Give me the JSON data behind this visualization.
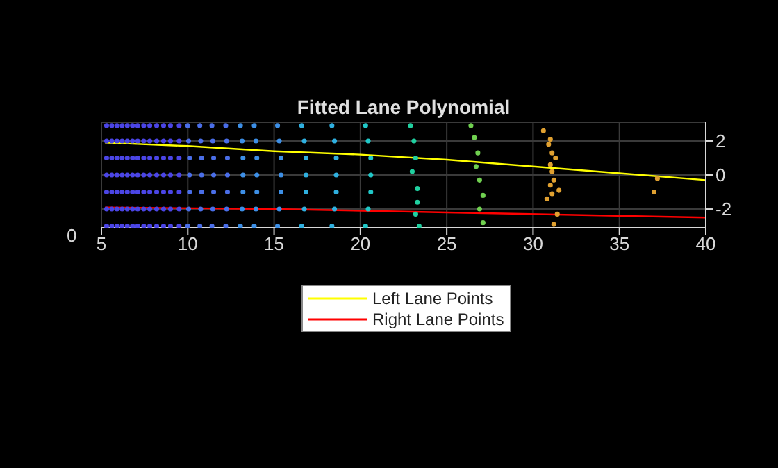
{
  "chart_data": {
    "type": "scatter",
    "title": "Fitted Lane Polynomial",
    "xlim": [
      5,
      40
    ],
    "xticks": [
      5,
      10,
      15,
      20,
      25,
      30,
      35,
      40
    ],
    "ylim": [
      -3.1,
      3.1
    ],
    "yticks": [
      -2,
      0,
      2
    ],
    "grid": true,
    "legend": "bottom",
    "marker": "circle",
    "annotations": [
      "0"
    ],
    "series": [
      {
        "type": "line",
        "name": "Left Lane Points",
        "color": "#ffff00",
        "marker": "none",
        "x": [
          5.2,
          10,
          15,
          20,
          25,
          30,
          35,
          40
        ],
        "values": [
          1.9,
          1.7,
          1.4,
          1.2,
          0.9,
          0.5,
          0.1,
          -0.3
        ]
      },
      {
        "type": "line",
        "name": "Right Lane Points",
        "color": "#ff0000",
        "marker": "none",
        "x": [
          5.2,
          15,
          25,
          40
        ],
        "values": [
          -1.9,
          -2.0,
          -2.2,
          -2.5
        ]
      },
      {
        "color": "#4b45e6",
        "x": [
          5.3,
          5.3,
          5.3,
          5.3,
          5.3,
          5.3,
          5.3,
          5.6,
          5.6,
          5.6,
          5.6,
          5.6,
          5.6,
          5.6,
          5.9,
          5.9,
          5.9,
          5.9,
          5.9,
          5.9,
          5.9,
          6.2,
          6.2,
          6.2,
          6.2,
          6.2,
          6.2,
          6.2,
          6.5,
          6.5,
          6.5,
          6.5,
          6.5,
          6.5,
          6.5,
          6.8,
          6.8,
          6.8,
          6.8,
          6.8,
          6.8,
          6.8,
          7.1,
          7.1,
          7.1,
          7.1,
          7.1,
          7.1,
          7.1,
          7.45,
          7.45,
          7.45,
          7.45,
          7.45,
          7.45,
          7.45,
          7.8,
          7.8,
          7.8,
          7.8,
          7.8,
          7.8,
          7.8,
          8.2,
          8.2,
          8.2,
          8.2,
          8.2,
          8.2,
          8.2,
          8.6,
          8.6,
          8.6,
          8.6,
          8.6,
          8.6,
          8.6,
          9.0,
          9.0,
          9.0,
          9.0,
          9.0,
          9.0,
          9.0,
          9.5,
          9.5,
          9.5,
          9.5,
          9.5,
          9.5,
          9.5
        ],
        "values": [
          2.9,
          2,
          1,
          0,
          -1,
          -2,
          -3,
          2.9,
          2,
          1,
          0,
          -1,
          -2,
          -3,
          2.9,
          2,
          1,
          0,
          -1,
          -2,
          -3,
          2.9,
          2,
          1,
          0,
          -1,
          -2,
          -3,
          2.9,
          2,
          1,
          0,
          -1,
          -2,
          -3,
          2.9,
          2,
          1,
          0,
          -1,
          -2,
          -3,
          2.9,
          2,
          1,
          0,
          -1,
          -2,
          -3,
          2.9,
          2,
          1,
          0,
          -1,
          -2,
          -3,
          2.9,
          2,
          1,
          0,
          -1,
          -2,
          -3,
          2.9,
          2,
          1,
          0,
          -1,
          -2,
          -3,
          2.9,
          2,
          1,
          0,
          -1,
          -2,
          -3,
          2.9,
          2,
          1,
          0,
          -1,
          -2,
          -3,
          2.9,
          2,
          1,
          0,
          -1,
          -2,
          -3
        ]
      },
      {
        "color": "#4a6ee8",
        "x": [
          10.0,
          10.05,
          10.1,
          10.1,
          10.1,
          10.05,
          10.0,
          10.7,
          10.75,
          10.8,
          10.8,
          10.8,
          10.75,
          10.7,
          11.4,
          11.45,
          11.5,
          11.5,
          11.5,
          11.45,
          11.4,
          12.2,
          12.25,
          12.3,
          12.3,
          12.3,
          12.25,
          12.2
        ],
        "values": [
          2.9,
          2,
          1,
          0,
          -1,
          -2,
          -3,
          2.9,
          2,
          1,
          0,
          -1,
          -2,
          -3,
          2.9,
          2,
          1,
          0,
          -1,
          -2,
          -3,
          2.9,
          2,
          1,
          0,
          -1,
          -2,
          -3
        ]
      },
      {
        "color": "#3d8fe6",
        "x": [
          13.05,
          13.15,
          13.2,
          13.2,
          13.2,
          13.15,
          13.05,
          13.85,
          13.95,
          14.0,
          14.0,
          14.0,
          13.95,
          13.85,
          15.2,
          15.3,
          15.4,
          15.4,
          15.4,
          15.3,
          15.2
        ],
        "values": [
          2.9,
          2,
          1,
          0,
          -1,
          -2,
          -3,
          2.9,
          2,
          1,
          0,
          -1,
          -2,
          -3,
          2.9,
          2,
          1,
          0,
          -1,
          -2,
          -3
        ]
      },
      {
        "color": "#2fb0e0",
        "x": [
          16.6,
          16.75,
          16.85,
          16.85,
          16.85,
          16.75,
          16.6,
          18.35,
          18.5,
          18.6,
          18.6,
          18.6,
          18.5,
          18.35
        ],
        "values": [
          2.9,
          2,
          1,
          0,
          -1,
          -2,
          -3,
          2.9,
          2,
          1,
          0,
          -1,
          -2,
          -3
        ]
      },
      {
        "color": "#20c8c8",
        "x": [
          20.3,
          20.45,
          20.6,
          20.6,
          20.6,
          20.45,
          20.3
        ],
        "values": [
          2.9,
          2,
          1,
          0,
          -1,
          -2,
          -3
        ]
      },
      {
        "color": "#20d0a0",
        "x": [
          22.9,
          23.1,
          23.2,
          23.0,
          23.3,
          23.3,
          23.2,
          23.4
        ],
        "values": [
          2.9,
          2,
          1,
          0.2,
          -0.8,
          -1.6,
          -2.3,
          -3
        ]
      },
      {
        "color": "#70d050",
        "x": [
          26.4,
          26.6,
          26.8,
          26.7,
          26.9,
          27.1,
          26.9,
          27.1
        ],
        "values": [
          2.9,
          2.2,
          1.3,
          0.5,
          -0.3,
          -1.2,
          -2.0,
          -2.8
        ]
      },
      {
        "color": "#e0a030",
        "x": [
          30.6,
          31.0,
          30.9,
          31.1,
          31.3,
          31.0,
          31.1,
          31.2,
          31.0,
          31.5,
          31.1,
          30.8,
          31.4,
          31.2,
          37.2,
          37.0
        ],
        "values": [
          2.6,
          2.1,
          1.8,
          1.3,
          1.0,
          0.6,
          0.2,
          -0.3,
          -0.6,
          -0.9,
          -1.1,
          -1.4,
          -2.3,
          -2.9,
          -0.2,
          -1.0
        ]
      }
    ]
  }
}
